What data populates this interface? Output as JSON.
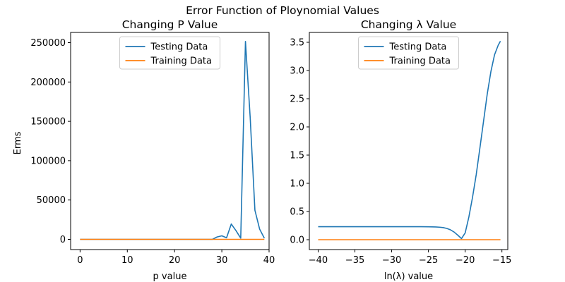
{
  "figure": {
    "suptitle": "Error Function of Ploynomial Values"
  },
  "chart_data": [
    {
      "type": "line",
      "title": "Changing P Value",
      "xlabel": "p value",
      "ylabel": "Erms",
      "xlim": [
        -2,
        40
      ],
      "ylim": [
        -13000,
        263000
      ],
      "xticks": [
        0,
        10,
        20,
        30,
        40
      ],
      "yticks": [
        0,
        50000,
        100000,
        150000,
        200000,
        250000
      ],
      "xtick_labels": [
        "0",
        "10",
        "20",
        "30",
        "40"
      ],
      "ytick_labels": [
        "0",
        "50000",
        "100000",
        "150000",
        "200000",
        "250000"
      ],
      "legend": {
        "placement": "upper center"
      },
      "series": [
        {
          "name": "Testing Data",
          "color": "#1f77b4",
          "x": [
            0,
            1,
            2,
            3,
            4,
            5,
            6,
            7,
            8,
            9,
            10,
            11,
            12,
            13,
            14,
            15,
            16,
            17,
            18,
            19,
            20,
            21,
            22,
            23,
            24,
            25,
            26,
            27,
            28,
            29,
            30,
            31,
            32,
            33,
            34,
            35,
            36,
            37,
            38,
            39
          ],
          "y": [
            0,
            0,
            0,
            0,
            0,
            0,
            0,
            0,
            0,
            0,
            0,
            0,
            0,
            0,
            0,
            0,
            0,
            0,
            0,
            0,
            0,
            0,
            0,
            0,
            0,
            0,
            0,
            0,
            0,
            3000,
            4500,
            2000,
            19500,
            11000,
            1500,
            251500,
            155000,
            37000,
            13000,
            1500
          ]
        },
        {
          "name": "Training Data",
          "color": "#ff7f0e",
          "x": [
            0,
            1,
            2,
            3,
            4,
            5,
            6,
            7,
            8,
            9,
            10,
            11,
            12,
            13,
            14,
            15,
            16,
            17,
            18,
            19,
            20,
            21,
            22,
            23,
            24,
            25,
            26,
            27,
            28,
            29,
            30,
            31,
            32,
            33,
            34,
            35,
            36,
            37,
            38,
            39
          ],
          "y": [
            0,
            0,
            0,
            0,
            0,
            0,
            0,
            0,
            0,
            0,
            0,
            0,
            0,
            0,
            0,
            0,
            0,
            0,
            0,
            0,
            0,
            0,
            0,
            0,
            0,
            0,
            0,
            0,
            0,
            0,
            0,
            0,
            0,
            0,
            0,
            0,
            0,
            0,
            0,
            0
          ]
        }
      ]
    },
    {
      "type": "line",
      "title": "Changing λ Value",
      "xlabel": "ln(λ) value",
      "ylabel": "",
      "xlim": [
        -41.2,
        -14.2
      ],
      "ylim": [
        -0.175,
        3.675
      ],
      "xticks": [
        -40,
        -35,
        -30,
        -25,
        -20,
        -15
      ],
      "yticks": [
        0.0,
        0.5,
        1.0,
        1.5,
        2.0,
        2.5,
        3.0,
        3.5
      ],
      "xtick_labels": [
        "−40",
        "−35",
        "−30",
        "−25",
        "−20",
        "−15"
      ],
      "ytick_labels": [
        "0.0",
        "0.5",
        "1.0",
        "1.5",
        "2.0",
        "2.5",
        "3.0",
        "3.5"
      ],
      "legend": {
        "placement": "upper center"
      },
      "series": [
        {
          "name": "Testing Data",
          "color": "#1f77b4",
          "x": [
            -40,
            -39,
            -38,
            -37,
            -36,
            -35,
            -34,
            -33,
            -32,
            -31,
            -30,
            -29,
            -28,
            -27,
            -26,
            -25,
            -24,
            -23.5,
            -23,
            -22.5,
            -22,
            -21.5,
            -21,
            -20.5,
            -20,
            -19.5,
            -19,
            -18.5,
            -18,
            -17.5,
            -17,
            -16.5,
            -16,
            -15.5,
            -15.2
          ],
          "y": [
            0.23,
            0.23,
            0.23,
            0.23,
            0.23,
            0.23,
            0.23,
            0.23,
            0.23,
            0.23,
            0.23,
            0.23,
            0.23,
            0.23,
            0.23,
            0.229,
            0.226,
            0.222,
            0.215,
            0.2,
            0.175,
            0.135,
            0.08,
            0.02,
            0.12,
            0.4,
            0.75,
            1.15,
            1.62,
            2.1,
            2.58,
            2.98,
            3.28,
            3.45,
            3.52
          ]
        },
        {
          "name": "Training Data",
          "color": "#ff7f0e",
          "x": [
            -40,
            -15.2
          ],
          "y": [
            0.0,
            0.0
          ]
        }
      ]
    }
  ]
}
